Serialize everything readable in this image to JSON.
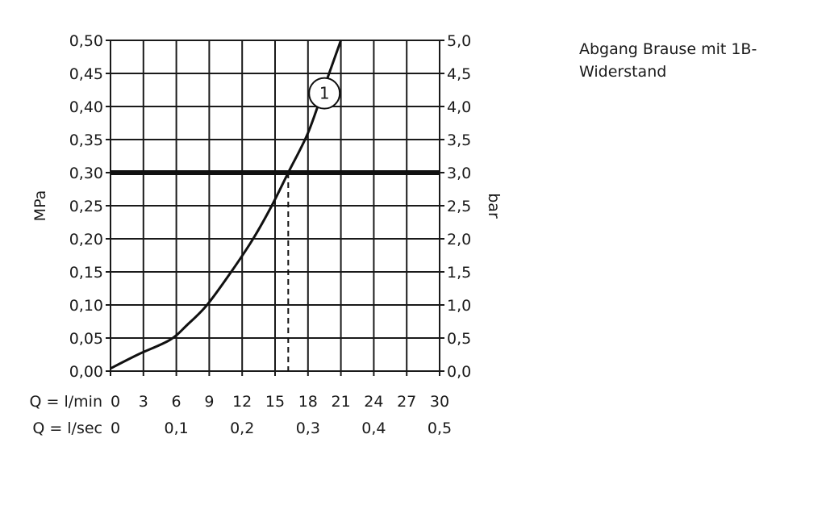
{
  "chart_data": {
    "type": "line",
    "title": "",
    "annotation": "Abgang Brause mit 1B-Widerstand",
    "annotation_lines": [
      "Abgang Brause mit 1B-",
      "Widerstand"
    ],
    "ylabel_left": "MPa",
    "ylabel_right": "bar",
    "xlim": [
      0,
      30
    ],
    "ylim": [
      0,
      0.5
    ],
    "grid": true,
    "x_ticks_lmin_prefix": "Q = l/min",
    "x_ticks_lmin": [
      "0",
      "3",
      "6",
      "9",
      "12",
      "15",
      "18",
      "21",
      "24",
      "27",
      "30"
    ],
    "x_ticks_lsec_prefix": "Q = l/sec",
    "x_ticks_lsec": [
      {
        "x": 0,
        "label": "0"
      },
      {
        "x": 6,
        "label": "0,1"
      },
      {
        "x": 12,
        "label": "0,2"
      },
      {
        "x": 18,
        "label": "0,3"
      },
      {
        "x": 24,
        "label": "0,4"
      },
      {
        "x": 30,
        "label": "0,5"
      }
    ],
    "y_ticks_left": [
      "0,00",
      "0,05",
      "0,10",
      "0,15",
      "0,20",
      "0,25",
      "0,30",
      "0,35",
      "0,40",
      "0,45",
      "0,50"
    ],
    "y_ticks_right": [
      "0,0",
      "0,5",
      "1,0",
      "1,5",
      "2,0",
      "2,5",
      "3,0",
      "3,5",
      "4,0",
      "4,5",
      "5,0"
    ],
    "series": [
      {
        "label": "1",
        "label_at": [
          19.5,
          0.42
        ],
        "x": [
          0,
          2.5,
          5.4,
          7,
          8.8,
          11,
          13,
          14.7,
          16.2,
          18,
          19.5,
          21
        ],
        "y": [
          0.004,
          0.025,
          0.047,
          0.07,
          0.1,
          0.15,
          0.2,
          0.25,
          0.3,
          0.36,
          0.43,
          0.5
        ]
      }
    ],
    "reference_line_y": 0.3,
    "reference_drop_x": 16.2
  }
}
